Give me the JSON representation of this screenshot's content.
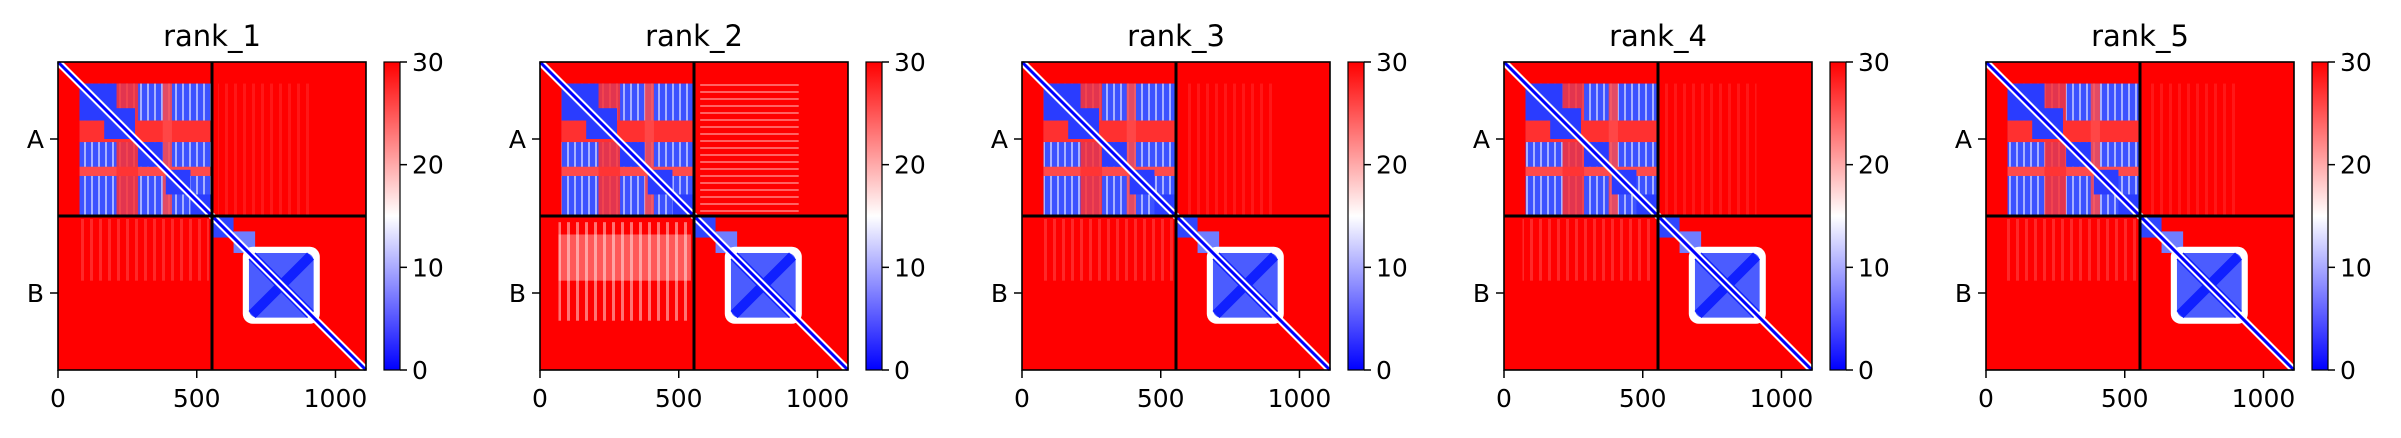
{
  "chart_data": [
    {
      "type": "heatmap",
      "title": "rank_1",
      "chains": [
        "A",
        "B"
      ],
      "chain_boundary": 555,
      "xlim": [
        0,
        1110
      ],
      "xticks": [
        "0",
        "500",
        "1000"
      ],
      "colorbar": {
        "min": 0,
        "max": 30,
        "ticks": [
          "0",
          "10",
          "20",
          "30"
        ],
        "colormap": "bwr",
        "low": "#0000ff",
        "mid": "#ffffff",
        "high": "#ff0000"
      },
      "interchain_contacts": "low"
    },
    {
      "type": "heatmap",
      "title": "rank_2",
      "chains": [
        "A",
        "B"
      ],
      "chain_boundary": 555,
      "xlim": [
        0,
        1110
      ],
      "xticks": [
        "0",
        "500",
        "1000"
      ],
      "colorbar": {
        "min": 0,
        "max": 30,
        "ticks": [
          "0",
          "10",
          "20",
          "30"
        ],
        "colormap": "bwr",
        "low": "#0000ff",
        "mid": "#ffffff",
        "high": "#ff0000"
      },
      "interchain_contacts": "moderate"
    },
    {
      "type": "heatmap",
      "title": "rank_3",
      "chains": [
        "A",
        "B"
      ],
      "chain_boundary": 555,
      "xlim": [
        0,
        1110
      ],
      "xticks": [
        "0",
        "500",
        "1000"
      ],
      "colorbar": {
        "min": 0,
        "max": 30,
        "ticks": [
          "0",
          "10",
          "20",
          "30"
        ],
        "colormap": "bwr",
        "low": "#0000ff",
        "mid": "#ffffff",
        "high": "#ff0000"
      },
      "interchain_contacts": "low"
    },
    {
      "type": "heatmap",
      "title": "rank_4",
      "chains": [
        "A",
        "B"
      ],
      "chain_boundary": 555,
      "xlim": [
        0,
        1110
      ],
      "xticks": [
        "0",
        "500",
        "1000"
      ],
      "colorbar": {
        "min": 0,
        "max": 30,
        "ticks": [
          "0",
          "10",
          "20",
          "30"
        ],
        "colormap": "bwr",
        "low": "#0000ff",
        "mid": "#ffffff",
        "high": "#ff0000"
      },
      "interchain_contacts": "low"
    },
    {
      "type": "heatmap",
      "title": "rank_5",
      "chains": [
        "A",
        "B"
      ],
      "chain_boundary": 555,
      "xlim": [
        0,
        1110
      ],
      "xticks": [
        "0",
        "500",
        "1000"
      ],
      "colorbar": {
        "min": 0,
        "max": 30,
        "ticks": [
          "0",
          "10",
          "20",
          "30"
        ],
        "colormap": "bwr",
        "low": "#0000ff",
        "mid": "#ffffff",
        "high": "#ff0000"
      },
      "interchain_contacts": "low"
    }
  ]
}
